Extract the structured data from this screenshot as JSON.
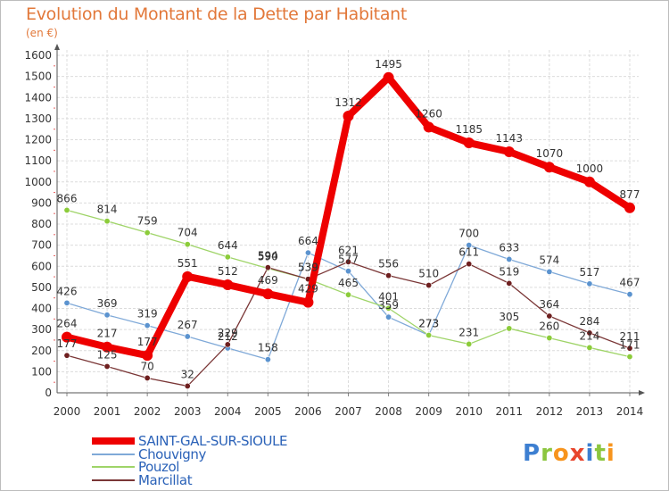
{
  "title": "Evolution du Montant de la Dette par Habitant",
  "unit": "(en €)",
  "logo": {
    "text": "Proxiti",
    "letters": [
      {
        "ch": "P",
        "color": "#3d7fd1"
      },
      {
        "ch": "r",
        "color": "#8cc63f"
      },
      {
        "ch": "o",
        "color": "#f7941d"
      },
      {
        "ch": "x",
        "color": "#e8452c"
      },
      {
        "ch": "i",
        "color": "#3d7fd1"
      },
      {
        "ch": "t",
        "color": "#8cc63f"
      },
      {
        "ch": "i",
        "color": "#f7941d"
      }
    ]
  },
  "chart_data": {
    "type": "line",
    "x": [
      "2000",
      "2001",
      "2002",
      "2003",
      "2004",
      "2005",
      "2006",
      "2007",
      "2008",
      "2009",
      "2010",
      "2011",
      "2012",
      "2013",
      "2014"
    ],
    "ylim": [
      0,
      1600
    ],
    "yticks": [
      0,
      100,
      200,
      300,
      400,
      500,
      600,
      700,
      800,
      900,
      1000,
      1100,
      1200,
      1300,
      1400,
      1500,
      1600
    ],
    "grid": true,
    "legend_position": "bottom-left",
    "series": [
      {
        "name": "Chouvigny",
        "color": "#5b93cf",
        "line_color": "#7fa9d8",
        "values": [
          426,
          369,
          319,
          267,
          212,
          158,
          664,
          577,
          359,
          273,
          700,
          633,
          574,
          517,
          467
        ]
      },
      {
        "name": "Pouzol",
        "color": "#8ccc3a",
        "line_color": "#9fd468",
        "values": [
          866,
          814,
          759,
          704,
          644,
          590,
          539,
          465,
          401,
          273,
          231,
          305,
          260,
          214,
          171
        ]
      },
      {
        "name": "Marcillat",
        "color": "#6e1f1f",
        "line_color": "#7a3636",
        "values": [
          177,
          125,
          70,
          32,
          229,
          594,
          539,
          621,
          556,
          510,
          611,
          519,
          364,
          284,
          211
        ]
      },
      {
        "name": "SAINT-GAL-SUR-SIOULE",
        "color": "#ee0000",
        "line_color": "#ee0000",
        "values": [
          264,
          217,
          177,
          551,
          512,
          469,
          429,
          1312,
          1495,
          1260,
          1185,
          1143,
          1070,
          1000,
          877
        ]
      }
    ],
    "legend": [
      "SAINT-GAL-SUR-SIOULE",
      "Chouvigny",
      "Pouzol",
      "Marcillat"
    ]
  }
}
